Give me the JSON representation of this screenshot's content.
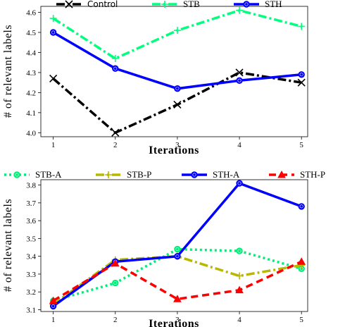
{
  "chart_data": [
    {
      "type": "line",
      "x": [
        1,
        2,
        3,
        4,
        5
      ],
      "xlabel": "Iterations",
      "ylabel": "# of relevant labels",
      "xlim": [
        0.8,
        5.1
      ],
      "ylim": [
        3.98,
        4.63
      ],
      "xticks": [
        "1",
        "2",
        "3",
        "4",
        "5"
      ],
      "yticks": [
        "4.0",
        "4.1",
        "4.2",
        "4.3",
        "4.4",
        "4.5",
        "4.6"
      ],
      "ytick_values": [
        4.0,
        4.1,
        4.2,
        4.3,
        4.4,
        4.5,
        4.6
      ],
      "legend_position": "top",
      "series": [
        {
          "name": "Control",
          "values": [
            4.27,
            4.0,
            4.14,
            4.3,
            4.25
          ],
          "color": "#000000",
          "style": "dashdot",
          "marker": "x"
        },
        {
          "name": "STB",
          "values": [
            4.57,
            4.37,
            4.51,
            4.61,
            4.53
          ],
          "color": "#00ff7f",
          "style": "dashdot",
          "marker": "plus"
        },
        {
          "name": "STH",
          "values": [
            4.5,
            4.32,
            4.22,
            4.26,
            4.29
          ],
          "color": "#0000ff",
          "style": "solid",
          "marker": "circle"
        }
      ]
    },
    {
      "type": "line",
      "x": [
        1,
        2,
        3,
        4,
        5
      ],
      "xlabel": "Iterations",
      "ylabel": "# of relevant labels",
      "xlim": [
        0.8,
        5.1
      ],
      "ylim": [
        3.09,
        3.83
      ],
      "xticks": [
        "1",
        "2",
        "3",
        "4",
        "5"
      ],
      "yticks": [
        "3.1",
        "3.2",
        "3.3",
        "3.4",
        "3.5",
        "3.6",
        "3.7",
        "3.8"
      ],
      "ytick_values": [
        3.1,
        3.2,
        3.3,
        3.4,
        3.5,
        3.6,
        3.7,
        3.8
      ],
      "legend_position": "top",
      "series": [
        {
          "name": "STB-A",
          "values": [
            3.15,
            3.25,
            3.44,
            3.43,
            3.33
          ],
          "color": "#00ee77",
          "style": "dotted",
          "marker": "circle"
        },
        {
          "name": "STB-P",
          "values": [
            3.13,
            3.38,
            3.4,
            3.29,
            3.35
          ],
          "color": "#b8b800",
          "style": "dashdot",
          "marker": "plus"
        },
        {
          "name": "STH-A",
          "values": [
            3.12,
            3.37,
            3.4,
            3.81,
            3.68
          ],
          "color": "#0000ff",
          "style": "solid",
          "marker": "circle"
        },
        {
          "name": "STH-P",
          "values": [
            3.15,
            3.36,
            3.16,
            3.21,
            3.37
          ],
          "color": "#ff0000",
          "style": "dashed",
          "marker": "triangle"
        }
      ]
    }
  ]
}
